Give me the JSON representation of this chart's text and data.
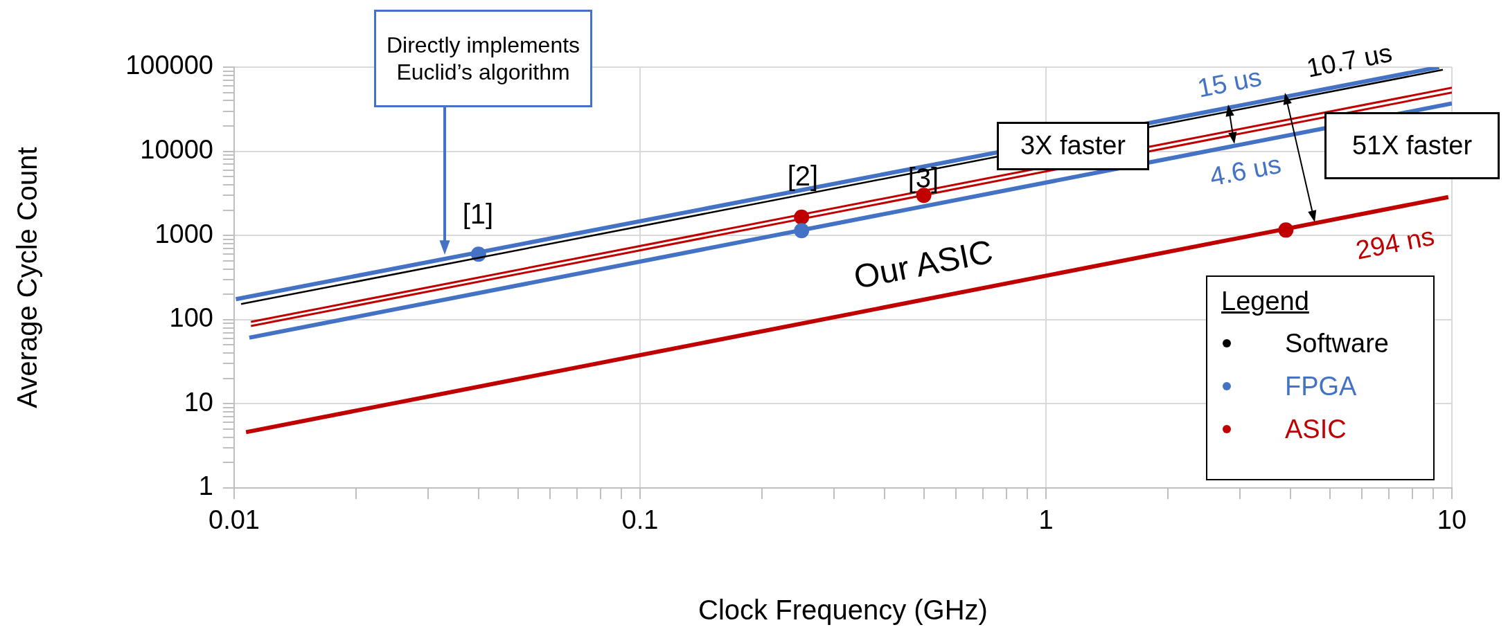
{
  "chart_data": {
    "type": "line",
    "xlabel": "Clock Frequency (GHz)",
    "ylabel": "Average Cycle Count",
    "log": "xy",
    "grid": true,
    "marker": "circle",
    "legend": "bottom right",
    "legend_title": "Legend",
    "xlim": [
      0.01,
      10
    ],
    "ylim": [
      1,
      100000
    ],
    "xticks": [
      0.01,
      {
        "value": 0.02,
        "label": null
      },
      {
        "value": 0.03,
        "label": null
      },
      {
        "value": 0.04,
        "label": null
      },
      {
        "value": 0.05,
        "label": null
      },
      {
        "value": 0.06,
        "label": null
      },
      {
        "value": 0.07,
        "label": null
      },
      {
        "value": 0.08,
        "label": null
      },
      {
        "value": 0.09,
        "label": null
      },
      0.1,
      {
        "value": 0.2,
        "label": null
      },
      {
        "value": 0.3,
        "label": null
      },
      {
        "value": 0.4,
        "label": null
      },
      {
        "value": 0.5,
        "label": null
      },
      {
        "value": 0.6,
        "label": null
      },
      {
        "value": 0.7,
        "label": null
      },
      {
        "value": 0.8,
        "label": null
      },
      {
        "value": 0.9,
        "label": null
      },
      1,
      {
        "value": 2,
        "label": null
      },
      {
        "value": 3,
        "label": null
      },
      {
        "value": 4,
        "label": null
      },
      {
        "value": 5,
        "label": null
      },
      {
        "value": 6,
        "label": null
      },
      {
        "value": 7,
        "label": null
      },
      {
        "value": 8,
        "label": null
      },
      {
        "value": 9,
        "label": null
      },
      10
    ],
    "yticks": [
      1,
      {
        "value": 2,
        "label": null
      },
      {
        "value": 3,
        "label": null
      },
      {
        "value": 4,
        "label": null
      },
      {
        "value": 5,
        "label": null
      },
      {
        "value": 6,
        "label": null
      },
      {
        "value": 7,
        "label": null
      },
      {
        "value": 8,
        "label": null
      },
      {
        "value": 9,
        "label": null
      },
      10,
      {
        "value": 20,
        "label": null
      },
      {
        "value": 30,
        "label": null
      },
      {
        "value": 40,
        "label": null
      },
      {
        "value": 50,
        "label": null
      },
      {
        "value": 60,
        "label": null
      },
      {
        "value": 70,
        "label": null
      },
      {
        "value": 80,
        "label": null
      },
      {
        "value": 90,
        "label": null
      },
      100,
      {
        "value": 200,
        "label": null
      },
      {
        "value": 300,
        "label": null
      },
      {
        "value": 400,
        "label": null
      },
      {
        "value": 500,
        "label": null
      },
      {
        "value": 600,
        "label": null
      },
      {
        "value": 700,
        "label": null
      },
      {
        "value": 800,
        "label": null
      },
      {
        "value": 900,
        "label": null
      },
      1000,
      {
        "value": 2000,
        "label": null
      },
      {
        "value": 3000,
        "label": null
      },
      {
        "value": 4000,
        "label": null
      },
      {
        "value": 5000,
        "label": null
      },
      {
        "value": 6000,
        "label": null
      },
      {
        "value": 7000,
        "label": null
      },
      {
        "value": 8000,
        "label": null
      },
      {
        "value": 9000,
        "label": null
      },
      10000,
      {
        "value": 20000,
        "label": null
      },
      {
        "value": 30000,
        "label": null
      },
      {
        "value": 40000,
        "label": null
      },
      {
        "value": 50000,
        "label": null
      },
      {
        "value": 60000,
        "label": null
      },
      {
        "value": 70000,
        "label": null
      },
      {
        "value": 80000,
        "label": null
      },
      {
        "value": 90000,
        "label": null
      },
      100000
    ],
    "series": [
      {
        "name": "Software",
        "marker": "none",
        "color": "#000000",
        "x": [
          0.0104,
          9.5
        ],
        "values": [
          153,
          93000
        ]
      },
      {
        "name": "FPGA",
        "marker": "none",
        "color": "#4472c4",
        "x": [
          0.0101,
          9.3
        ],
        "values": [
          175,
          100000
        ]
      },
      {
        "name": "ASIC",
        "marker": "none",
        "color": "#c00000",
        "x": [
          0.011,
          10
        ],
        "values": [
          94,
          56900
        ]
      },
      {
        "marker": "none",
        "color": "#c00000",
        "x": [
          0.011,
          10
        ],
        "values": [
          84,
          50000
        ]
      },
      {
        "marker": "none",
        "color": "#4472c4",
        "x": [
          0.0109,
          10
        ],
        "values": [
          61,
          37000
        ]
      },
      {
        "marker": "none",
        "color": "#c00000",
        "x": [
          0.0107,
          9.8
        ],
        "values": [
          4.6,
          2860
        ]
      },
      {
        "type": "scatter",
        "color": "#4472c4",
        "x": [
          0.04,
          0.25
        ],
        "values": [
          600,
          1140
        ]
      },
      {
        "type": "scatter",
        "color": "#c00000",
        "x": [
          0.25,
          0.5,
          3.9
        ],
        "values": [
          1650,
          3000,
          1160
        ]
      }
    ],
    "annotations": [
      "Directly implements Euclid’s algorithm",
      "[1]",
      "[2]",
      "[3]",
      "3X faster",
      "51X faster",
      "15 us",
      "10.7 us",
      "4.6 us",
      "294 ns",
      "Our ASIC"
    ]
  }
}
